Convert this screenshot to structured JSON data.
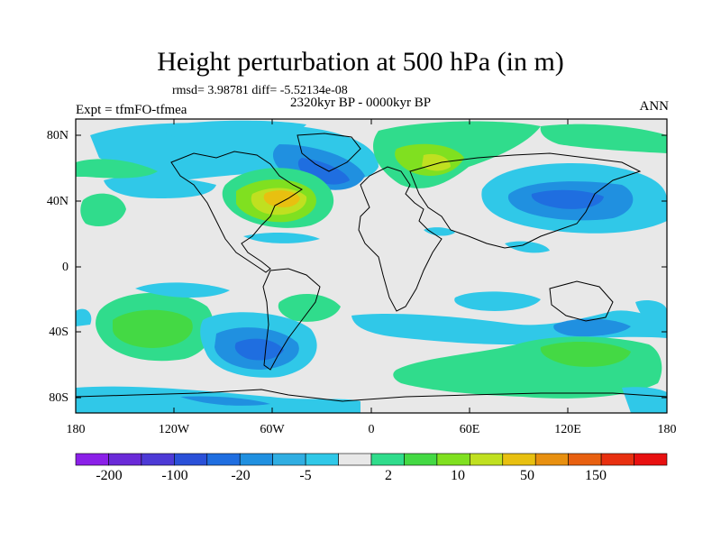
{
  "title": "Height perturbation at 500 hPa (in m)",
  "stats": "rmsd= 3.98781 diff= -5.52134e-08",
  "subtitle": "2320kyr BP - 0000kyr BP",
  "experiment": "Expt = tfmFO-tfmea",
  "season": "ANN",
  "axes": {
    "y_ticks": [
      "80N",
      "40N",
      "0",
      "40S",
      "80S"
    ],
    "x_ticks": [
      "180",
      "120W",
      "60W",
      "0",
      "60E",
      "120E",
      "180"
    ]
  },
  "colorbar": {
    "colors": [
      "#8b20e8",
      "#6a2ad8",
      "#4d3ad6",
      "#2a50d8",
      "#1f6ee0",
      "#2090e0",
      "#30aee2",
      "#30c8e8",
      "#e8e8e8",
      "#30dc8c",
      "#44d944",
      "#80e020",
      "#c0e020",
      "#e8c010",
      "#e89010",
      "#e86010",
      "#e83010",
      "#e81010"
    ],
    "labels": [
      "-200",
      "-100",
      "-20",
      "-5",
      "2",
      "10",
      "50",
      "150"
    ]
  },
  "regions": [
    {
      "name": "arctic-blue-band",
      "level": -5
    },
    {
      "name": "north-atlantic-positive-high",
      "level": 50
    },
    {
      "name": "north-pacific-negative-low",
      "level": -20
    },
    {
      "name": "eurasia-positive-high",
      "level": 10
    },
    {
      "name": "southern-ocean-positive-band",
      "level": 10
    },
    {
      "name": "south-america-negative-low",
      "level": -20
    }
  ]
}
